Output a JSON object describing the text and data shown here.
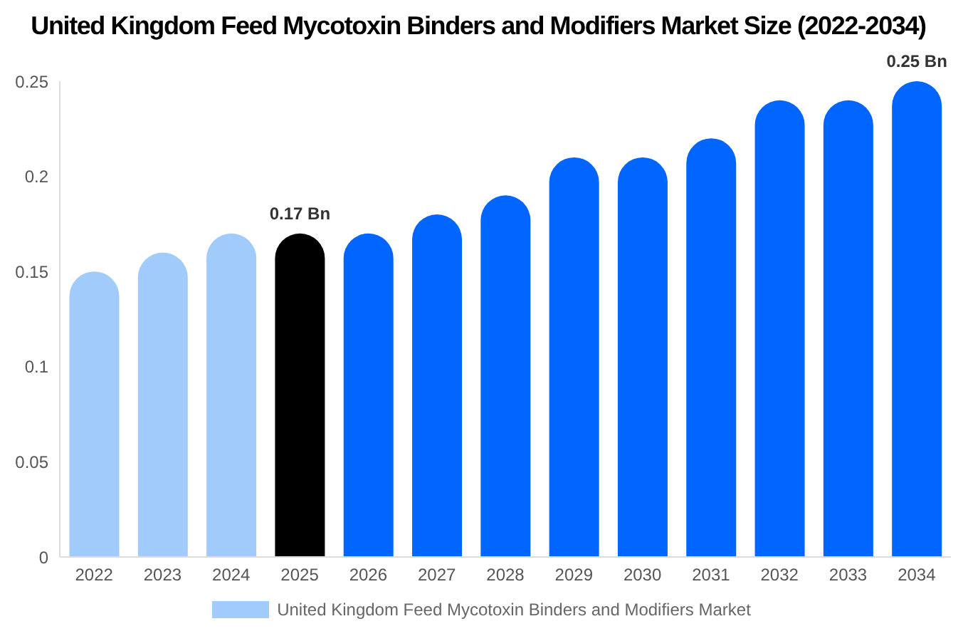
{
  "chart_data": {
    "type": "bar",
    "title": "United Kingdom Feed Mycotoxin Binders and Modifiers Market Size (2022-2034)",
    "categories": [
      "2022",
      "2023",
      "2024",
      "2025",
      "2026",
      "2027",
      "2028",
      "2029",
      "2030",
      "2031",
      "2032",
      "2033",
      "2034"
    ],
    "series": [
      {
        "name": "United Kingdom Feed Mycotoxin Binders and Modifiers Market",
        "color": "#a0cbfa",
        "values": [
          0.15,
          0.16,
          0.17,
          0.17,
          0.17,
          0.18,
          0.19,
          0.21,
          0.21,
          0.22,
          0.24,
          0.24,
          0.25
        ],
        "colors": [
          "#a0cbfa",
          "#a0cbfa",
          "#a0cbfa",
          "#000000",
          "#0066ff",
          "#0066ff",
          "#0066ff",
          "#0066ff",
          "#0066ff",
          "#0066ff",
          "#0066ff",
          "#0066ff",
          "#0066ff"
        ],
        "value_labels": [
          null,
          null,
          null,
          "0.17 Bn",
          null,
          null,
          null,
          null,
          null,
          null,
          null,
          null,
          "0.25 Bn"
        ]
      }
    ],
    "ylim": [
      0,
      0.25
    ],
    "yticks": [
      0,
      0.05,
      0.1,
      0.15,
      0.2,
      0.25
    ],
    "grid": false,
    "legend": "bottom"
  }
}
